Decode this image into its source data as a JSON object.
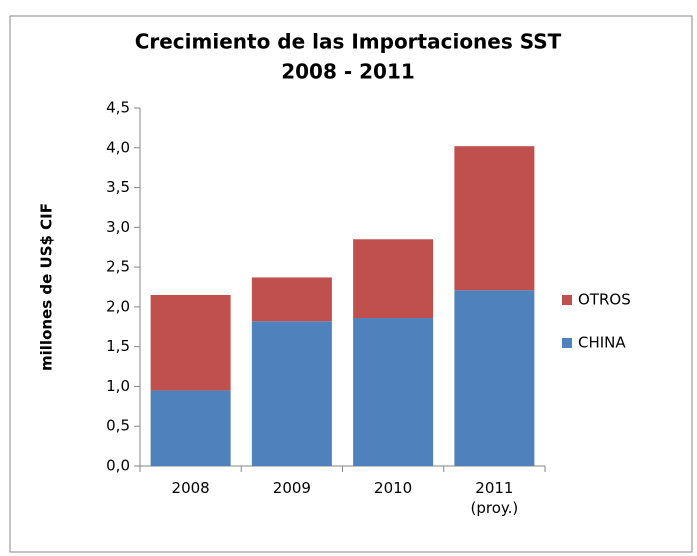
{
  "chart_data": {
    "type": "stacked_bar",
    "title": "Crecimiento de las Importaciones SST",
    "subtitle": "2008 - 2011",
    "y_label": "millones de US$ CIF",
    "categories": [
      "2008",
      "2009",
      "2010",
      "2011 (proy.)"
    ],
    "series": [
      {
        "name": "CHINA",
        "color": "#4f81bd",
        "values": [
          0.95,
          1.82,
          1.86,
          2.21
        ]
      },
      {
        "name": "OTROS",
        "color": "#c0504d",
        "values": [
          1.2,
          0.55,
          0.99,
          1.81
        ]
      }
    ],
    "ylim": [
      0,
      4.5
    ],
    "yticks": [
      {
        "value": 0,
        "label": "0,0"
      },
      {
        "value": 0.5,
        "label": "0,5"
      },
      {
        "value": 1,
        "label": "1,0"
      },
      {
        "value": 1.5,
        "label": "1,5"
      },
      {
        "value": 2,
        "label": "2,0"
      },
      {
        "value": 2.5,
        "label": "2,5"
      },
      {
        "value": 3,
        "label": "3,0"
      },
      {
        "value": 3.5,
        "label": "3,5"
      },
      {
        "value": 4,
        "label": "4,0"
      },
      {
        "value": 4.5,
        "label": "4,5"
      }
    ],
    "grid": false,
    "legend": "right"
  }
}
